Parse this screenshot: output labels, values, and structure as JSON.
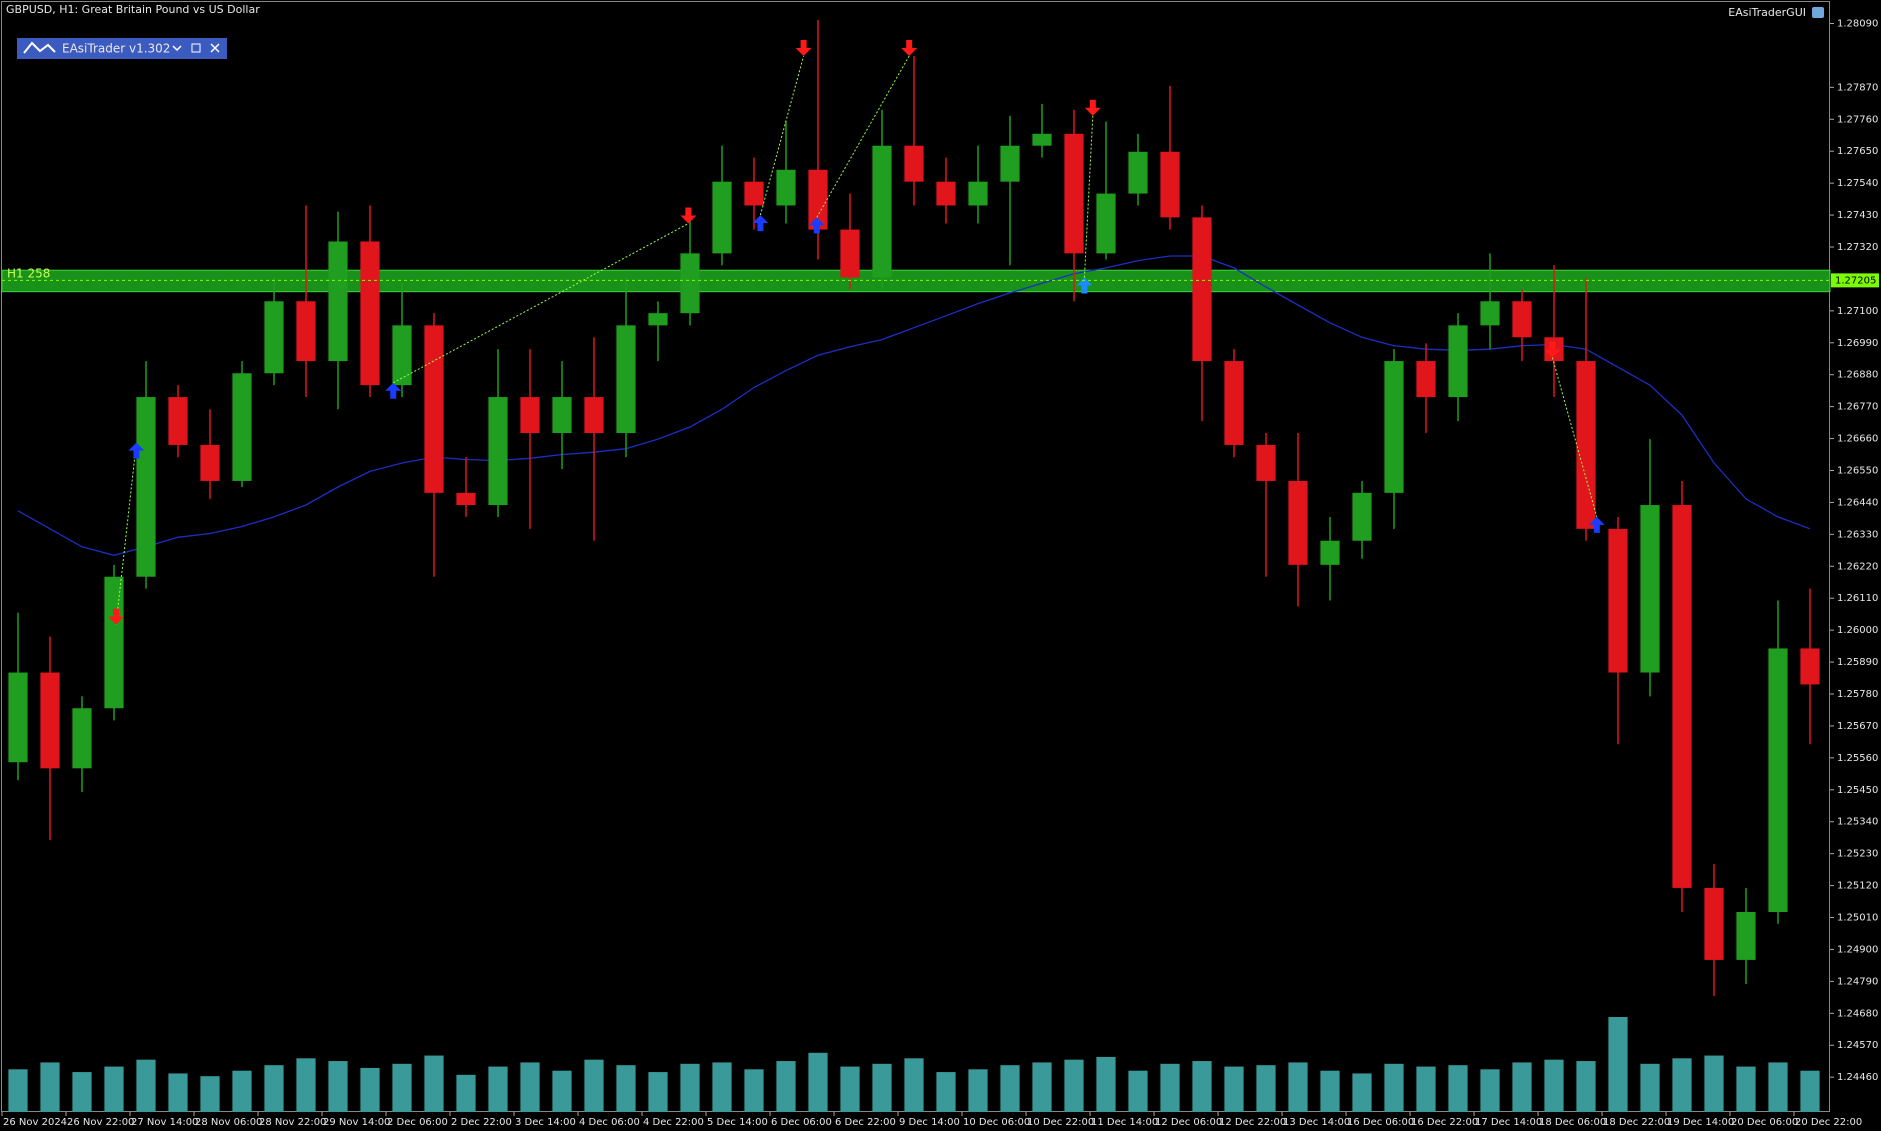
{
  "chart_data": {
    "type": "candlestick",
    "title": "GBPUSD, H1:  Great Britain Pound vs US Dollar",
    "x": [
      4,
      12,
      20,
      28,
      36,
      44,
      52,
      60,
      68,
      76,
      84,
      92,
      100,
      108,
      116,
      124,
      132,
      140,
      148,
      156,
      164,
      172,
      180,
      188,
      196,
      204,
      212,
      220,
      228,
      236,
      244,
      252,
      260,
      268,
      276,
      284,
      292,
      300,
      308,
      316,
      324,
      332,
      340,
      348,
      356,
      364,
      372,
      380,
      388,
      396,
      404,
      412,
      420,
      428,
      436,
      444,
      452
    ],
    "open": [
      1.25545,
      1.25854,
      1.25524,
      1.25731,
      1.26184,
      1.26803,
      1.26638,
      1.26514,
      1.26885,
      1.27133,
      1.26927,
      1.27339,
      1.26844,
      1.2705,
      1.26473,
      1.26431,
      1.26803,
      1.26679,
      1.26803,
      1.26679,
      1.2705,
      1.27092,
      1.27298,
      1.27545,
      1.27463,
      1.27586,
      1.2738,
      1.27215,
      1.27669,
      1.27545,
      1.27463,
      1.27545,
      1.27669,
      1.2771,
      1.27298,
      1.27504,
      1.27648,
      1.27422,
      1.26927,
      1.26638,
      1.26514,
      1.26225,
      1.26308,
      1.26473,
      1.26927,
      1.26803,
      1.2705,
      1.27133,
      1.27009,
      1.26927,
      1.26349,
      1.25854,
      1.26431,
      1.25112,
      1.24864,
      1.25029,
      1.25937
    ],
    "high": [
      1.2606,
      1.25978,
      1.25772,
      1.26225,
      1.26927,
      1.26844,
      1.26761,
      1.26927,
      1.27215,
      1.27463,
      1.27442,
      1.27463,
      1.27195,
      1.27092,
      1.26596,
      1.26968,
      1.26968,
      1.26927,
      1.27009,
      1.27215,
      1.27133,
      1.27422,
      1.27669,
      1.27628,
      1.27752,
      1.28102,
      1.27504,
      1.27793,
      1.27978,
      1.27628,
      1.27669,
      1.27772,
      1.27813,
      1.27793,
      1.27752,
      1.2771,
      1.27875,
      1.27463,
      1.26968,
      1.26679,
      1.26679,
      1.2639,
      1.26514,
      1.26968,
      1.26988,
      1.27092,
      1.27298,
      1.27174,
      1.27257,
      1.27215,
      1.2639,
      1.26658,
      1.26514,
      1.25194,
      1.25112,
      1.26102,
      1.26143
    ],
    "low": [
      1.25483,
      1.25277,
      1.25442,
      1.25689,
      1.26143,
      1.26596,
      1.26452,
      1.26493,
      1.26844,
      1.26803,
      1.26761,
      1.26803,
      1.26803,
      1.26184,
      1.2639,
      1.2639,
      1.26349,
      1.26555,
      1.26308,
      1.26596,
      1.26927,
      1.2705,
      1.27257,
      1.2738,
      1.27401,
      1.27277,
      1.27174,
      1.27174,
      1.27463,
      1.27401,
      1.27401,
      1.27257,
      1.27628,
      1.27133,
      1.27277,
      1.27463,
      1.2738,
      1.2672,
      1.26596,
      1.26184,
      1.26081,
      1.26102,
      1.26246,
      1.26349,
      1.26679,
      1.2672,
      1.26968,
      1.26927,
      1.26803,
      1.26308,
      1.25607,
      1.25772,
      1.25029,
      1.2474,
      1.24781,
      1.24988,
      1.25607
    ],
    "close": [
      1.25854,
      1.25524,
      1.25731,
      1.26184,
      1.26803,
      1.26638,
      1.26514,
      1.26885,
      1.27133,
      1.26927,
      1.27339,
      1.26844,
      1.2705,
      1.26473,
      1.26431,
      1.26803,
      1.26679,
      1.26803,
      1.26679,
      1.2705,
      1.27092,
      1.27298,
      1.27545,
      1.27463,
      1.27586,
      1.2738,
      1.27215,
      1.27669,
      1.27545,
      1.27463,
      1.27545,
      1.27669,
      1.2771,
      1.27298,
      1.27504,
      1.27648,
      1.27422,
      1.26927,
      1.26638,
      1.26514,
      1.26225,
      1.26308,
      1.26473,
      1.26927,
      1.26803,
      1.2705,
      1.27133,
      1.27009,
      1.26927,
      1.26349,
      1.25854,
      1.26431,
      1.25112,
      1.24864,
      1.25029,
      1.25937,
      1.25813
    ],
    "volume": [
      3100,
      3600,
      2900,
      3300,
      3800,
      2800,
      2600,
      3000,
      3400,
      3900,
      3700,
      3200,
      3500,
      4100,
      2700,
      3300,
      3600,
      3000,
      3800,
      3400,
      2900,
      3500,
      3600,
      3100,
      3700,
      4300,
      3300,
      3500,
      3900,
      2900,
      3100,
      3400,
      3600,
      3800,
      4000,
      3000,
      3500,
      3700,
      3300,
      3400,
      3600,
      3000,
      2800,
      3500,
      3300,
      3400,
      3100,
      3600,
      3800,
      3700,
      6900,
      3500,
      3900,
      4100,
      3300,
      3600,
      3000
    ],
    "up_color": "#1f9e1f",
    "down_color": "#e0161c",
    "volume_color": "#3a9a9a",
    "moving_average": {
      "color": "#1c2fc4",
      "values": [
        1.26411,
        1.26349,
        1.26287,
        1.26258,
        1.26287,
        1.2632,
        1.26333,
        1.26357,
        1.2639,
        1.26431,
        1.26493,
        1.26547,
        1.26576,
        1.26596,
        1.26588,
        1.26584,
        1.26592,
        1.26605,
        1.26613,
        1.26625,
        1.26658,
        1.267,
        1.26761,
        1.26836,
        1.26894,
        1.26947,
        1.26976,
        1.27001,
        1.27042,
        1.27083,
        1.27125,
        1.27162,
        1.27195,
        1.27228,
        1.27248,
        1.27273,
        1.27289,
        1.27289,
        1.27248,
        1.27182,
        1.2712,
        1.27059,
        1.27009,
        1.2698,
        1.26968,
        1.26964,
        1.26968,
        1.2698,
        1.26984,
        1.26968,
        1.26906,
        1.26844,
        1.26741,
        1.26576,
        1.26452,
        1.2639,
        1.26349
      ]
    },
    "signals": {
      "x": [
        28.5,
        33.6,
        97.8,
        171.6,
        189.6,
        200.4,
        203.7,
        226.8,
        270.6,
        272.7,
        387.6,
        398.7
      ],
      "values": [
        1.26019,
        1.26646,
        1.26852,
        1.27401,
        1.2743,
        1.27978,
        1.27422,
        1.27978,
        1.27215,
        1.27772,
        1.26939,
        1.2639
      ],
      "directions": [
        "down",
        "up",
        "up",
        "down",
        "up",
        "down",
        "up",
        "down",
        "up",
        "down",
        "down",
        "up"
      ],
      "colors": [
        "#ff1a1a",
        "#1a3cff",
        "#1a3cff",
        "#ff1a1a",
        "#1a3cff",
        "#ff1a1a",
        "#1a3cff",
        "#ff1a1a",
        "#1a8cff",
        "#ff1a1a",
        "#ff1a1a",
        "#1a3cff"
      ]
    },
    "zone": {
      "label": "H1 258",
      "values": [
        1.2724,
        1.27166
      ],
      "color": "#1faa1f"
    },
    "current_price": 1.27205,
    "ylim": [
      1.2434,
      1.28164
    ],
    "yticks": [
      {
        "value": 1.2809,
        "label": "1.28090"
      },
      {
        "value": 1.2787,
        "label": "1.27870"
      },
      {
        "value": 1.2776,
        "label": "1.27760"
      },
      {
        "value": 1.2765,
        "label": "1.27650"
      },
      {
        "value": 1.2754,
        "label": "1.27540"
      },
      {
        "value": 1.2743,
        "label": "1.27430"
      },
      {
        "value": 1.2732,
        "label": "1.27320"
      },
      {
        "value": 1.271,
        "label": "1.27100"
      },
      {
        "value": 1.2699,
        "label": "1.26990"
      },
      {
        "value": 1.2688,
        "label": "1.26880"
      },
      {
        "value": 1.2677,
        "label": "1.26770"
      },
      {
        "value": 1.2666,
        "label": "1.26660"
      },
      {
        "value": 1.2655,
        "label": "1.26550"
      },
      {
        "value": 1.2644,
        "label": "1.26440"
      },
      {
        "value": 1.2633,
        "label": "1.26330"
      },
      {
        "value": 1.2622,
        "label": "1.26220"
      },
      {
        "value": 1.2611,
        "label": "1.26110"
      },
      {
        "value": 1.26,
        "label": "1.26000"
      },
      {
        "value": 1.2589,
        "label": "1.25890"
      },
      {
        "value": 1.2578,
        "label": "1.25780"
      },
      {
        "value": 1.2567,
        "label": "1.25670"
      },
      {
        "value": 1.2556,
        "label": "1.25560"
      },
      {
        "value": 1.2545,
        "label": "1.25450"
      },
      {
        "value": 1.2534,
        "label": "1.25340"
      },
      {
        "value": 1.2523,
        "label": "1.25230"
      },
      {
        "value": 1.2512,
        "label": "1.25120"
      },
      {
        "value": 1.2501,
        "label": "1.25010"
      },
      {
        "value": 1.249,
        "label": "1.24900"
      },
      {
        "value": 1.2479,
        "label": "1.24790"
      },
      {
        "value": 1.2468,
        "label": "1.24680"
      },
      {
        "value": 1.2457,
        "label": "1.24570"
      },
      {
        "value": 1.2446,
        "label": "1.24460"
      }
    ],
    "xlim": [
      0,
      457
    ],
    "xticks": [
      {
        "value": 0,
        "label": "26 Nov 2024"
      },
      {
        "value": 16,
        "label": "26 Nov 22:00"
      },
      {
        "value": 32,
        "label": "27 Nov 14:00"
      },
      {
        "value": 48,
        "label": "28 Nov 06:00"
      },
      {
        "value": 64,
        "label": "28 Nov 22:00"
      },
      {
        "value": 80,
        "label": "29 Nov 14:00"
      },
      {
        "value": 96,
        "label": "2 Dec 06:00"
      },
      {
        "value": 112,
        "label": "2 Dec 22:00"
      },
      {
        "value": 128,
        "label": "3 Dec 14:00"
      },
      {
        "value": 144,
        "label": "4 Dec 06:00"
      },
      {
        "value": 160,
        "label": "4 Dec 22:00"
      },
      {
        "value": 176,
        "label": "5 Dec 14:00"
      },
      {
        "value": 192,
        "label": "6 Dec 06:00"
      },
      {
        "value": 208,
        "label": "6 Dec 22:00"
      },
      {
        "value": 224,
        "label": "9 Dec 14:00"
      },
      {
        "value": 240,
        "label": "10 Dec 06:00"
      },
      {
        "value": 256,
        "label": "10 Dec 22:00"
      },
      {
        "value": 272,
        "label": "11 Dec 14:00"
      },
      {
        "value": 288,
        "label": "12 Dec 06:00"
      },
      {
        "value": 304,
        "label": "12 Dec 22:00"
      },
      {
        "value": 320,
        "label": "13 Dec 14:00"
      },
      {
        "value": 336,
        "label": "16 Dec 06:00"
      },
      {
        "value": 352,
        "label": "16 Dec 22:00"
      },
      {
        "value": 368,
        "label": "17 Dec 14:00"
      },
      {
        "value": 384,
        "label": "18 Dec 06:00"
      },
      {
        "value": 400,
        "label": "18 Dec 22:00"
      },
      {
        "value": 416,
        "label": "19 Dec 14:00"
      },
      {
        "value": 432,
        "label": "20 Dec 06:00"
      },
      {
        "value": 448,
        "label": "20 Dec 22:00"
      }
    ]
  },
  "widget": {
    "title": "EAsiTrader v1.302"
  },
  "indicator_label": "EAsiTraderGUI"
}
